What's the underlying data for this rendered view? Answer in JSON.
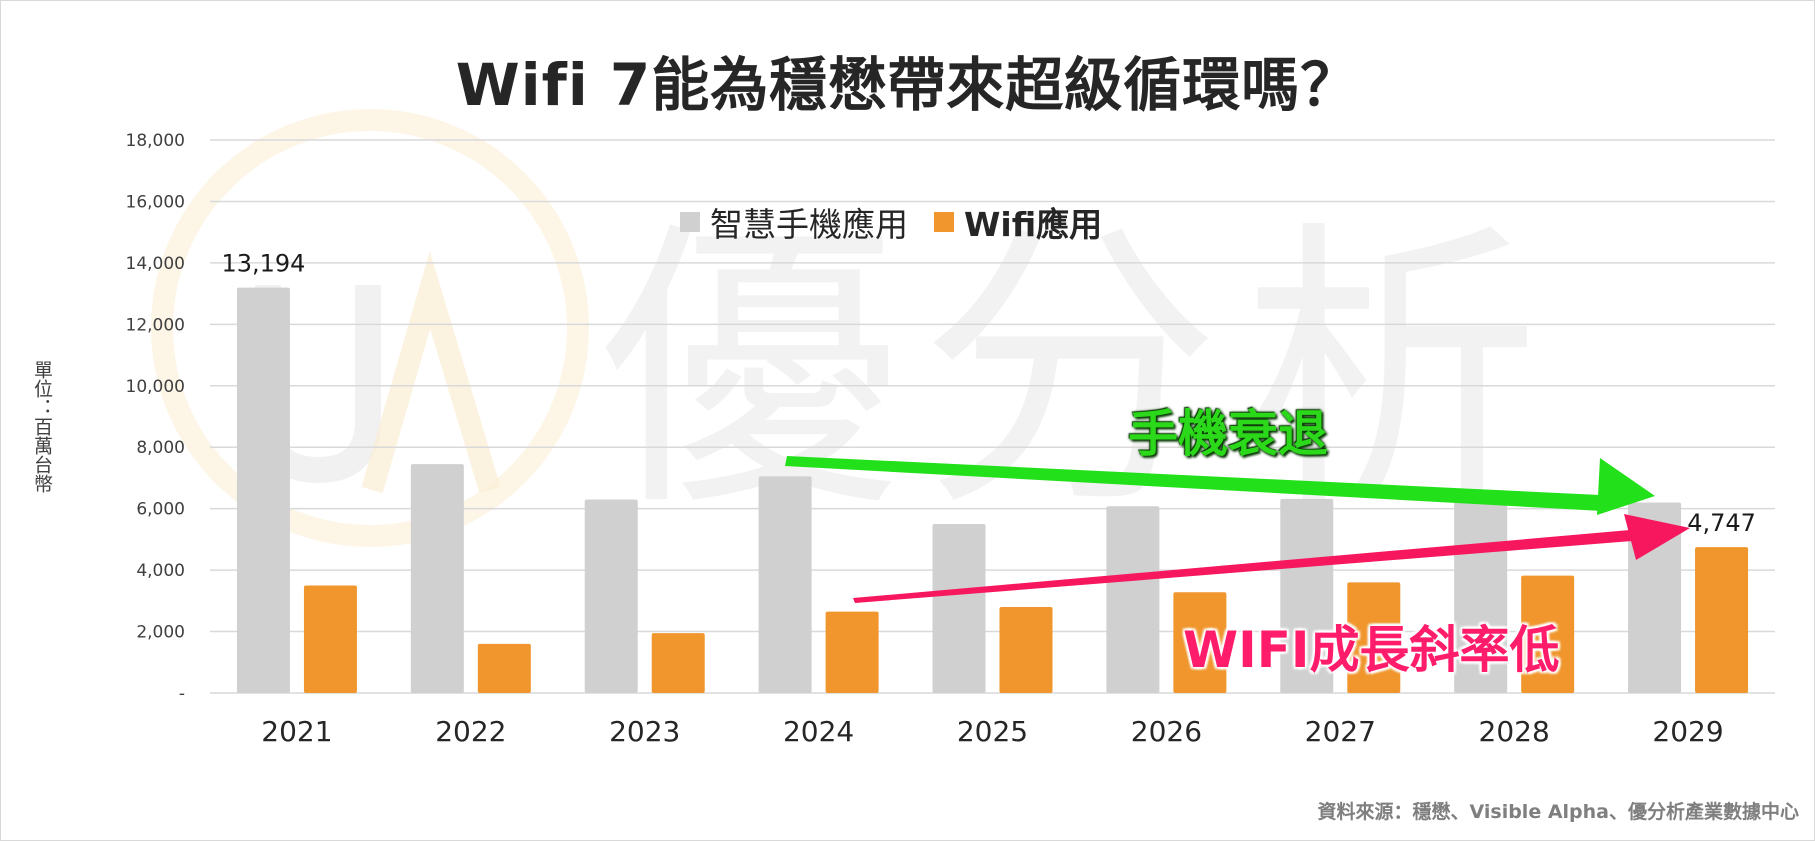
{
  "title": "Wifi 7能為穩懋帶來超級循環嗎？",
  "unit_label": "單位：百萬台幣",
  "source": "資料來源：穩懋、Visible Alpha、優分析產業數據中心",
  "watermark": "優分析",
  "legend": {
    "phone": "智慧手機應用",
    "wifi": "Wifi應用"
  },
  "annotations": {
    "phone_decline": "手機衰退",
    "wifi_growth": "WIFI成長斜率低"
  },
  "colors": {
    "phone": "#d0d0d0",
    "wifi": "#f0962c",
    "grid": "#d9d9d9",
    "green_arrow": "#22e11a",
    "pink_arrow": "#f7175f"
  },
  "chart_data": {
    "type": "bar",
    "categories": [
      "2021",
      "2022",
      "2023",
      "2024",
      "2025",
      "2026",
      "2027",
      "2028",
      "2029"
    ],
    "series": [
      {
        "name": "智慧手機應用",
        "values": [
          13194,
          7450,
          6300,
          7050,
          5500,
          6080,
          6320,
          6600,
          6200
        ]
      },
      {
        "name": "Wifi應用",
        "values": [
          3500,
          1600,
          1950,
          2650,
          2800,
          3280,
          3600,
          3820,
          4747
        ]
      }
    ],
    "data_labels": [
      {
        "series": 0,
        "index": 0,
        "text": "13,194"
      },
      {
        "series": 1,
        "index": 8,
        "text": "4,747"
      }
    ],
    "yticks": [
      0,
      2000,
      4000,
      6000,
      8000,
      10000,
      12000,
      14000,
      16000,
      18000
    ],
    "ytick_labels": [
      "-",
      "2,000",
      "4,000",
      "6,000",
      "8,000",
      "10,000",
      "12,000",
      "14,000",
      "16,000",
      "18,000"
    ],
    "ylim": [
      0,
      18000
    ],
    "grid": true,
    "legend_position": "top-center"
  }
}
